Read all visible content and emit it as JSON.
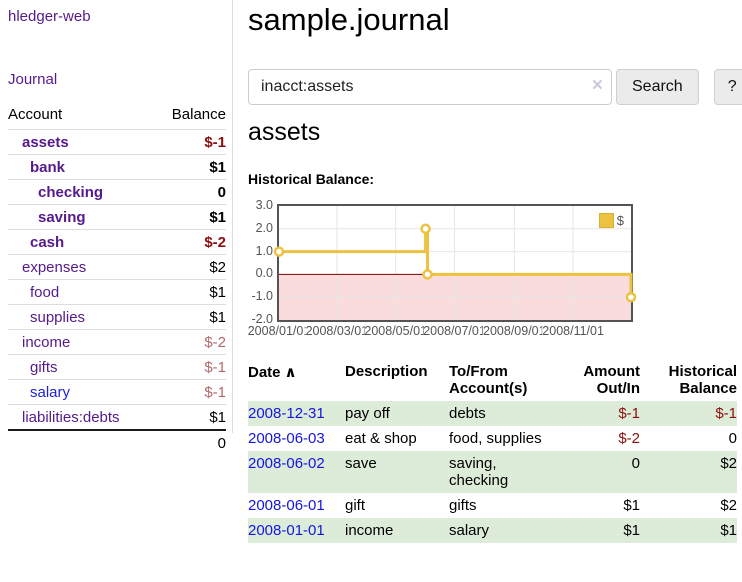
{
  "app": {
    "brand": "hledger-web",
    "nav_journal": "Journal"
  },
  "sidebar": {
    "header": {
      "account": "Account",
      "balance": "Balance"
    },
    "accounts": [
      {
        "name": "assets",
        "indent": 1,
        "bold": true,
        "balance": "$-1",
        "balance_style": "neg-strong"
      },
      {
        "name": "bank",
        "indent": 2,
        "bold": true,
        "balance": "$1",
        "balance_style": "pos"
      },
      {
        "name": "checking",
        "indent": 3,
        "bold": true,
        "balance": "0",
        "balance_style": "pos"
      },
      {
        "name": "saving",
        "indent": 3,
        "bold": true,
        "balance": "$1",
        "balance_style": "pos"
      },
      {
        "name": "cash",
        "indent": 2,
        "bold": true,
        "balance": "$-2",
        "balance_style": "neg-strong"
      },
      {
        "name": "expenses",
        "indent": 1,
        "bold": false,
        "balance": "$2",
        "balance_style": "pos"
      },
      {
        "name": "food",
        "indent": 2,
        "bold": false,
        "balance": "$1",
        "balance_style": "pos"
      },
      {
        "name": "supplies",
        "indent": 2,
        "bold": false,
        "balance": "$1",
        "balance_style": "pos"
      },
      {
        "name": "income",
        "indent": 1,
        "bold": false,
        "balance": "$-2",
        "balance_style": "neg-muted"
      },
      {
        "name": "gifts",
        "indent": 2,
        "bold": false,
        "balance": "$-1",
        "balance_style": "neg-muted"
      },
      {
        "name": "salary",
        "indent": 2,
        "bold": false,
        "balance": "$-1",
        "balance_style": "neg-muted",
        "link_color": "blue"
      },
      {
        "name": "liabilities:debts",
        "indent": 1,
        "bold": false,
        "balance": "$1",
        "balance_style": "pos"
      }
    ],
    "total": "0"
  },
  "header": {
    "title": "sample.journal"
  },
  "search": {
    "value": "inacct:assets",
    "clear_icon": "×",
    "button": "Search",
    "help_button": "?"
  },
  "account_page": {
    "heading": "assets",
    "chart_label": "Historical Balance:"
  },
  "chart_data": {
    "type": "line",
    "step": true,
    "title": "Historical Balance",
    "series": [
      {
        "name": "$",
        "color": "#edc240",
        "points": [
          [
            "2008-01-01",
            1
          ],
          [
            "2008-06-01",
            2
          ],
          [
            "2008-06-03",
            0
          ],
          [
            "2008-12-31",
            -1
          ]
        ]
      }
    ],
    "x_ticks": [
      "2008/01/01",
      "2008/03/01",
      "2008/05/01",
      "2008/07/01",
      "2008/09/01",
      "2008/11/01"
    ],
    "y_ticks": [
      "3.0",
      "2.0",
      "1.0",
      "0.0",
      "-1.0",
      "-2.0"
    ],
    "xlim": [
      "2008-01-01",
      "2008-12-31"
    ],
    "ylim": [
      -2,
      3
    ],
    "grid": true,
    "legend_position": "top-right",
    "negative_region_color": "#fadcdc",
    "zero_line_color": "#800000",
    "grid_color": "#e6e6e6",
    "marker_fill": "#ffffff"
  },
  "register": {
    "sort_icon": "∧",
    "columns": [
      {
        "label": "Date",
        "align": "left",
        "sorted": true
      },
      {
        "label": "Description",
        "align": "left"
      },
      {
        "label": "To/From Account(s)",
        "align": "left"
      },
      {
        "label": "Amount Out/In",
        "align": "right"
      },
      {
        "label": "Historical Balance",
        "align": "right"
      }
    ],
    "rows": [
      {
        "date": "2008-12-31",
        "description": "pay off",
        "accounts": "debts",
        "amount": "$-1",
        "amount_neg": true,
        "balance": "$-1",
        "balance_neg": true,
        "shaded": true
      },
      {
        "date": "2008-06-03",
        "description": "eat & shop",
        "accounts": "food, supplies",
        "amount": "$-2",
        "amount_neg": true,
        "balance": "0",
        "balance_neg": false,
        "shaded": false
      },
      {
        "date": "2008-06-02",
        "description": "save",
        "accounts": "saving, checking",
        "amount": "0",
        "amount_neg": false,
        "balance": "$2",
        "balance_neg": false,
        "shaded": true
      },
      {
        "date": "2008-06-01",
        "description": "gift",
        "accounts": "gifts",
        "amount": "$1",
        "amount_neg": false,
        "balance": "$2",
        "balance_neg": false,
        "shaded": false
      },
      {
        "date": "2008-01-01",
        "description": "income",
        "accounts": "salary",
        "amount": "$1",
        "amount_neg": false,
        "balance": "$1",
        "balance_neg": false,
        "shaded": true
      }
    ]
  }
}
